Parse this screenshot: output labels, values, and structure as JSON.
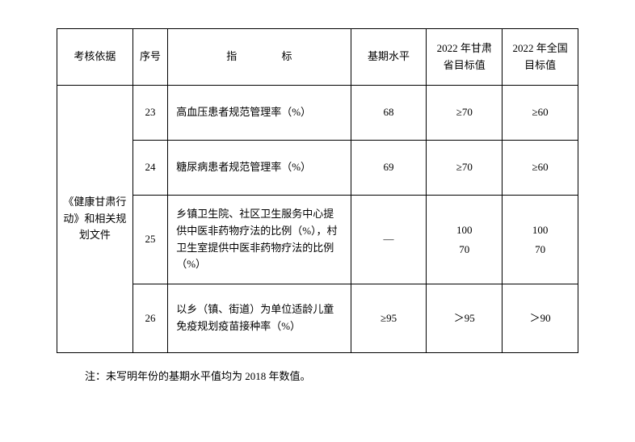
{
  "headers": {
    "basis": "考核依据",
    "seq": "序号",
    "indicator": "指 标",
    "baseline": "基期水平",
    "gansu": "2022 年甘肃省目标值",
    "national": "2022 年全国目标值"
  },
  "basis_text": "《健康甘肃行动》和相关规划文件",
  "rows": [
    {
      "seq": "23",
      "indicator": "高血压患者规范管理率（%）",
      "baseline": "68",
      "gansu": "≥70",
      "national": "≥60"
    },
    {
      "seq": "24",
      "indicator": "糖尿病患者规范管理率（%）",
      "baseline": "69",
      "gansu": "≥70",
      "national": "≥60"
    },
    {
      "seq": "25",
      "indicator": "乡镇卫生院、社区卫生服务中心提供中医非药物疗法的比例（%），村卫生室提供中医非药物疗法的比例（%）",
      "baseline": "—",
      "gansu_l1": "100",
      "gansu_l2": "70",
      "national_l1": "100",
      "national_l2": "70"
    },
    {
      "seq": "26",
      "indicator": "以乡（镇、街道）为单位适龄儿童免疫规划疫苗接种率（%）",
      "baseline": "≥95",
      "gansu": "＞95",
      "national": "＞90"
    }
  ],
  "note": "注：未写明年份的基期水平值均为 2018 年数值。"
}
